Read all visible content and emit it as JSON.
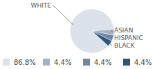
{
  "chart_data": {
    "type": "pie",
    "categories": [
      "WHITE",
      "ASIAN",
      "HISPANIC",
      "BLACK"
    ],
    "values": [
      86.8,
      4.4,
      4.4,
      4.4
    ],
    "value_labels": [
      "86.8%",
      "4.4%",
      "4.4%",
      "4.4%"
    ],
    "colors": [
      "#dbe2ea",
      "#a3b3c6",
      "#6f89a5",
      "#2f5577"
    ],
    "legend": "bottom"
  }
}
